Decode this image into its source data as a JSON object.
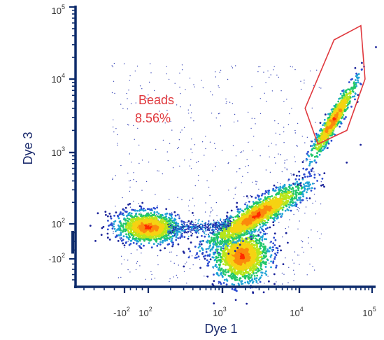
{
  "chart_data": {
    "type": "scatter",
    "xlabel": "Dye 1",
    "ylabel": "Dye 3",
    "x_scale": "biexponential",
    "y_scale": "biexponential",
    "xlim": [
      -300,
      100000
    ],
    "ylim": [
      -300,
      100000
    ],
    "x_ticks": [
      {
        "value": -100,
        "base": "-10",
        "exp": "2"
      },
      {
        "value": 100,
        "base": "10",
        "exp": "2"
      },
      {
        "value": 1000,
        "base": "10",
        "exp": "3"
      },
      {
        "value": 10000,
        "base": "10",
        "exp": "4"
      },
      {
        "value": 100000,
        "base": "10",
        "exp": "5"
      }
    ],
    "y_ticks": [
      {
        "value": -100,
        "base": "-10",
        "exp": "2"
      },
      {
        "value": 100,
        "base": "10",
        "exp": "2"
      },
      {
        "value": 1000,
        "base": "10",
        "exp": "3"
      },
      {
        "value": 10000,
        "base": "10",
        "exp": "4"
      },
      {
        "value": 100000,
        "base": "10",
        "exp": "5"
      }
    ],
    "populations": [
      {
        "center_x": 100,
        "center_y": 80,
        "density": "high"
      },
      {
        "center_x": 1500,
        "center_y": -60,
        "density": "high"
      },
      {
        "center_x": 3000,
        "center_y": 150,
        "density": "high"
      },
      {
        "center_x": 28000,
        "center_y": 3500,
        "density": "high"
      }
    ],
    "gate": {
      "name": "Beads",
      "percent": "8.56%",
      "color": "#e0393e",
      "vertices": [
        [
          18000,
          1300
        ],
        [
          45000,
          2000
        ],
        [
          80000,
          10000
        ],
        [
          70000,
          55000
        ],
        [
          30000,
          35000
        ],
        [
          12000,
          4000
        ]
      ]
    },
    "colors": {
      "axis": "#0d2b6b",
      "gate": "#e0393e",
      "density_low": "#2233aa",
      "density_high": "#ff1a00"
    }
  },
  "gate_label": {
    "name": "Beads",
    "percent": "8.56%"
  }
}
